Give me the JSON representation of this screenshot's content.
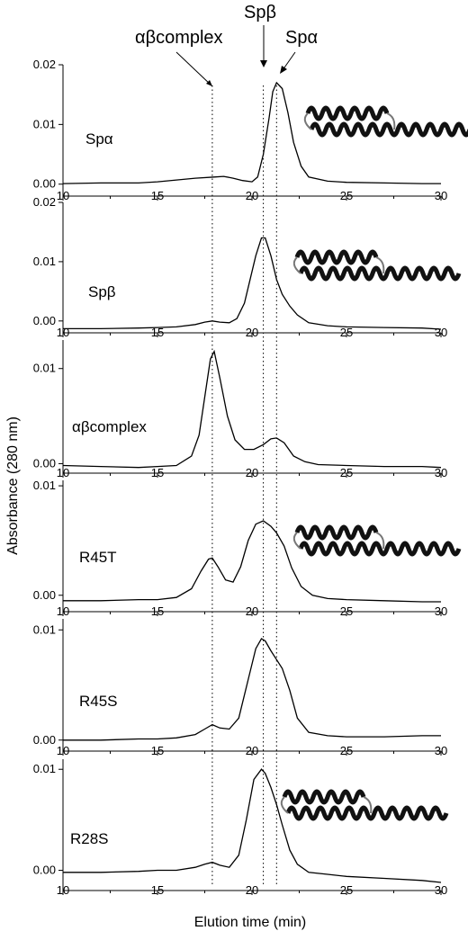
{
  "figure": {
    "xlabel": "Elution time (min)",
    "ylabel": "Absorbance (280 nm)",
    "top_labels": [
      "αβcomplex",
      "Spβ",
      "Spα"
    ]
  },
  "ref_lines": [
    17.9,
    20.6,
    21.3
  ],
  "chart_data": [
    {
      "type": "line",
      "panel_label": "Spα",
      "xlim": [
        10,
        30
      ],
      "ylim": [
        -0.002,
        0.02
      ],
      "xticks": [
        10,
        15,
        20,
        25,
        30
      ],
      "yticks": [
        0.0,
        0.01,
        0.02
      ],
      "ytick_labels": [
        "0.00",
        "0.01",
        "0.02"
      ],
      "has_structure_inset": true,
      "series": [
        {
          "x": [
            10,
            12,
            14,
            15,
            16,
            17,
            18,
            18.5,
            19,
            19.5,
            20,
            20.3,
            20.6,
            20.9,
            21.1,
            21.3,
            21.6,
            21.9,
            22.2,
            22.6,
            23,
            24,
            25,
            27,
            29,
            30
          ],
          "values": [
            0.0001,
            0.0002,
            0.0002,
            0.0004,
            0.0007,
            0.001,
            0.0012,
            0.0013,
            0.001,
            0.0006,
            0.0004,
            0.0012,
            0.005,
            0.011,
            0.0155,
            0.017,
            0.016,
            0.012,
            0.007,
            0.003,
            0.0012,
            0.0005,
            0.0003,
            0.0002,
            0.0001,
            0.0001
          ]
        }
      ]
    },
    {
      "type": "line",
      "panel_label": "Spβ",
      "xlim": [
        10,
        30
      ],
      "ylim": [
        -0.002,
        0.02
      ],
      "xticks": [
        10,
        15,
        20,
        25,
        30
      ],
      "yticks": [
        0.0,
        0.01,
        0.02
      ],
      "ytick_labels": [
        "0.00",
        "0.01",
        "0.02"
      ],
      "has_structure_inset": true,
      "series": [
        {
          "x": [
            10,
            12,
            14,
            15,
            16,
            17,
            17.5,
            17.9,
            18.3,
            18.8,
            19.2,
            19.6,
            19.9,
            20.2,
            20.5,
            20.7,
            21.0,
            21.3,
            21.6,
            22.0,
            22.4,
            23,
            24,
            25,
            27,
            29,
            30
          ],
          "values": [
            -0.0013,
            -0.0013,
            -0.0012,
            -0.0011,
            -0.001,
            -0.0006,
            -0.0002,
            0.0,
            -0.0002,
            -0.0003,
            0.0004,
            0.003,
            0.007,
            0.011,
            0.014,
            0.014,
            0.011,
            0.007,
            0.0045,
            0.0025,
            0.001,
            -0.0003,
            -0.0008,
            -0.001,
            -0.0011,
            -0.0012,
            -0.0014
          ]
        }
      ]
    },
    {
      "type": "line",
      "panel_label": "αβcomplex",
      "xlim": [
        10,
        30
      ],
      "ylim": [
        -0.001,
        0.013
      ],
      "xticks": [
        10,
        15,
        20,
        25,
        30
      ],
      "yticks": [
        0.0,
        0.01
      ],
      "ytick_labels": [
        "0.00",
        "0.01"
      ],
      "has_structure_inset": false,
      "series": [
        {
          "x": [
            10,
            12,
            14,
            15,
            16,
            16.8,
            17.2,
            17.5,
            17.8,
            18.0,
            18.3,
            18.7,
            19.1,
            19.6,
            20.1,
            20.6,
            21.0,
            21.3,
            21.7,
            22.2,
            22.8,
            23.5,
            25,
            27,
            29,
            30
          ],
          "values": [
            -0.0002,
            -0.0003,
            -0.0004,
            -0.0003,
            -0.0002,
            0.0008,
            0.003,
            0.007,
            0.011,
            0.0118,
            0.009,
            0.005,
            0.0025,
            0.0015,
            0.0015,
            0.002,
            0.0026,
            0.0027,
            0.0022,
            0.0008,
            0.0002,
            -0.0001,
            -0.0002,
            -0.0003,
            -0.0003,
            -0.0004
          ]
        }
      ]
    },
    {
      "type": "line",
      "panel_label": "R45T",
      "xlim": [
        10,
        30
      ],
      "ylim": [
        -0.0015,
        0.0105
      ],
      "xticks": [
        10,
        15,
        20,
        25,
        30
      ],
      "yticks": [
        0.0,
        0.01
      ],
      "ytick_labels": [
        "0.00",
        "0.01"
      ],
      "has_structure_inset": true,
      "series": [
        {
          "x": [
            10,
            12,
            14,
            15,
            16,
            16.8,
            17.3,
            17.7,
            17.9,
            18.2,
            18.6,
            19.0,
            19.4,
            19.8,
            20.2,
            20.6,
            21.0,
            21.3,
            21.7,
            22.1,
            22.6,
            23.2,
            24,
            25,
            27,
            29,
            30
          ],
          "values": [
            -0.0005,
            -0.0005,
            -0.0004,
            -0.0004,
            -0.0002,
            0.0006,
            0.0022,
            0.0033,
            0.0034,
            0.0026,
            0.0014,
            0.0012,
            0.0026,
            0.005,
            0.0065,
            0.0068,
            0.0063,
            0.0057,
            0.0045,
            0.0025,
            0.0008,
            0.0,
            -0.0003,
            -0.0004,
            -0.0005,
            -0.0006,
            -0.0006
          ]
        }
      ]
    },
    {
      "type": "line",
      "panel_label": "R45S",
      "xlim": [
        10,
        30
      ],
      "ylim": [
        -0.001,
        0.011
      ],
      "xticks": [
        10,
        15,
        20,
        25,
        30
      ],
      "yticks": [
        0.0,
        0.01
      ],
      "ytick_labels": [
        "0.00",
        "0.01"
      ],
      "has_structure_inset": false,
      "series": [
        {
          "x": [
            10,
            12,
            14,
            15,
            16,
            17,
            17.5,
            17.9,
            18.3,
            18.8,
            19.3,
            19.8,
            20.2,
            20.5,
            20.7,
            21.0,
            21.3,
            21.6,
            22.0,
            22.4,
            23,
            24,
            25,
            27,
            29,
            30
          ],
          "values": [
            0.0,
            0.0,
            0.0001,
            0.0001,
            0.0002,
            0.0005,
            0.001,
            0.0014,
            0.0011,
            0.001,
            0.002,
            0.0055,
            0.0083,
            0.0092,
            0.009,
            0.0081,
            0.0073,
            0.0065,
            0.0045,
            0.002,
            0.0007,
            0.0004,
            0.0003,
            0.0003,
            0.0004,
            0.0004
          ]
        }
      ]
    },
    {
      "type": "line",
      "panel_label": "R28S",
      "xlim": [
        10,
        30
      ],
      "ylim": [
        -0.002,
        0.011
      ],
      "xticks": [
        10,
        15,
        20,
        25,
        30
      ],
      "yticks": [
        0.0,
        0.01
      ],
      "ytick_labels": [
        "0.00",
        "0.01"
      ],
      "has_structure_inset": true,
      "series": [
        {
          "x": [
            10,
            12,
            14,
            15,
            16,
            17,
            17.5,
            17.9,
            18.3,
            18.8,
            19.3,
            19.7,
            20.1,
            20.5,
            20.7,
            21.0,
            21.3,
            21.6,
            22.0,
            22.4,
            23,
            24,
            25,
            27,
            29,
            30
          ],
          "values": [
            -0.0002,
            -0.0002,
            -0.0001,
            0.0,
            0.0,
            0.0003,
            0.0006,
            0.0008,
            0.0005,
            0.0003,
            0.0015,
            0.005,
            0.009,
            0.01,
            0.0096,
            0.0082,
            0.0065,
            0.0045,
            0.002,
            0.0006,
            -0.0002,
            -0.0004,
            -0.0006,
            -0.0008,
            -0.001,
            -0.0012
          ]
        }
      ]
    }
  ]
}
